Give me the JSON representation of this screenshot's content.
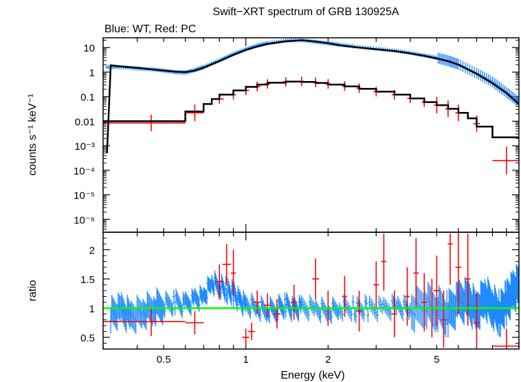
{
  "title": "Swift−XRT spectrum of GRB 130925A",
  "subtitle": "Blue: WT, Red: PC",
  "colors": {
    "wt": "#1e88ff",
    "pc": "#ff0000",
    "model": "#000000",
    "unity": "#00ff00",
    "axis": "#000000"
  },
  "chart_data": [
    {
      "type": "scatter",
      "panel": "spectrum",
      "title": "Swift−XRT spectrum of GRB 130925A",
      "subtitle": "Blue: WT, Red: PC",
      "xlabel": "Energy (keV)",
      "ylabel": "counts s⁻¹ keV⁻¹",
      "xscale": "log",
      "yscale": "log",
      "xlim": [
        0.3,
        10
      ],
      "ylim": [
        3e-07,
        25
      ],
      "y_ticks": [
        {
          "value": 10,
          "label": "10"
        },
        {
          "value": 1,
          "label": "1"
        },
        {
          "value": 0.1,
          "label": "0.1"
        },
        {
          "value": 0.01,
          "label": "0.01"
        },
        {
          "value": 0.001,
          "label": "10⁻³"
        },
        {
          "value": 0.0001,
          "label": "10⁻⁴"
        },
        {
          "value": 1e-05,
          "label": "10⁻⁵"
        },
        {
          "value": 1e-06,
          "label": "10⁻⁶"
        }
      ],
      "series": [
        {
          "name": "Blue: WT",
          "x": [
            0.31,
            0.35,
            0.4,
            0.45,
            0.5,
            0.55,
            0.6,
            0.65,
            0.7,
            0.8,
            0.9,
            1.0,
            1.1,
            1.2,
            1.4,
            1.6,
            1.8,
            2.0,
            2.2,
            2.5,
            3.0,
            3.5,
            4.0,
            4.5,
            5.0,
            5.5,
            6.0,
            7.0,
            8.0,
            9.0,
            10.0
          ],
          "y": [
            1.6,
            1.6,
            1.4,
            1.3,
            1.15,
            1.0,
            0.95,
            1.2,
            1.6,
            3.0,
            5.5,
            8.5,
            12,
            15,
            19,
            20,
            17,
            15,
            13,
            11,
            9,
            7.5,
            6,
            4.8,
            3.8,
            2.9,
            2.1,
            0.9,
            0.4,
            0.15,
            0.06
          ]
        },
        {
          "name": "Red: PC",
          "x": [
            0.45,
            0.65,
            0.8,
            0.9,
            1.0,
            1.1,
            1.2,
            1.4,
            1.6,
            1.8,
            2.0,
            2.3,
            2.6,
            3.0,
            3.5,
            4.0,
            4.5,
            5.0,
            5.5,
            6.0,
            7.0,
            9.0
          ],
          "y": [
            0.0085,
            0.022,
            0.08,
            0.12,
            0.18,
            0.26,
            0.33,
            0.4,
            0.42,
            0.38,
            0.33,
            0.27,
            0.22,
            0.16,
            0.12,
            0.085,
            0.06,
            0.045,
            0.032,
            0.022,
            0.008,
            0.00025
          ],
          "xerr": [
            [
              0.15,
              0.15
            ],
            [
              0.05,
              0.05
            ],
            [
              0.03,
              0.03
            ],
            [
              0.02,
              0.02
            ],
            [
              0.03,
              0.03
            ],
            [
              0.03,
              0.03
            ],
            [
              0.03,
              0.03
            ],
            [
              0.04,
              0.04
            ],
            [
              0.04,
              0.04
            ],
            [
              0.05,
              0.05
            ],
            [
              0.05,
              0.05
            ],
            [
              0.05,
              0.05
            ],
            [
              0.06,
              0.06
            ],
            [
              0.07,
              0.07
            ],
            [
              0.08,
              0.08
            ],
            [
              0.1,
              0.1
            ],
            [
              0.1,
              0.1
            ],
            [
              0.12,
              0.12
            ],
            [
              0.12,
              0.12
            ],
            [
              0.15,
              0.15
            ],
            [
              0.2,
              0.2
            ],
            [
              1.0,
              1.0
            ]
          ]
        }
      ],
      "model": {
        "wt_curve": {
          "x": [
            0.31,
            0.32,
            0.35,
            0.4,
            0.45,
            0.5,
            0.55,
            0.6,
            0.65,
            0.7,
            0.8,
            0.9,
            1.0,
            1.1,
            1.2,
            1.4,
            1.6,
            1.8,
            2.0,
            2.2,
            2.5,
            3.0,
            3.5,
            4.0,
            4.5,
            5.0,
            5.5,
            6.0,
            7.0,
            8.0,
            9.0,
            10.0
          ],
          "y": [
            0.0005,
            1.9,
            1.7,
            1.5,
            1.3,
            1.15,
            1.05,
            1.0,
            1.15,
            1.5,
            2.8,
            5.0,
            8.0,
            11,
            14,
            18,
            20,
            17.5,
            15,
            12.5,
            10.5,
            8.5,
            7.2,
            5.8,
            4.6,
            3.6,
            2.8,
            2.0,
            0.85,
            0.35,
            0.14,
            0.05
          ]
        },
        "pc_steps": {
          "edges": [
            0.3,
            0.6,
            0.7,
            0.75,
            0.8,
            0.9,
            1.0,
            1.1,
            1.2,
            1.4,
            1.6,
            1.8,
            2.0,
            2.3,
            2.6,
            3.0,
            3.5,
            4.0,
            4.5,
            5.0,
            5.5,
            6.0,
            6.5,
            7.0,
            8.0,
            10.0
          ],
          "y": [
            0.01,
            0.025,
            0.05,
            0.08,
            0.12,
            0.18,
            0.25,
            0.31,
            0.37,
            0.41,
            0.4,
            0.36,
            0.31,
            0.26,
            0.21,
            0.16,
            0.12,
            0.085,
            0.06,
            0.045,
            0.032,
            0.022,
            0.013,
            0.006,
            0.0022
          ]
        }
      }
    },
    {
      "type": "scatter",
      "panel": "ratio",
      "xlabel": "Energy (keV)",
      "ylabel": "ratio",
      "xscale": "log",
      "xlim": [
        0.3,
        10
      ],
      "ylim": [
        0.3,
        2.3
      ],
      "x_ticks": [
        {
          "value": 0.5,
          "label": "0.5"
        },
        {
          "value": 1,
          "label": "1"
        },
        {
          "value": 2,
          "label": "2"
        },
        {
          "value": 5,
          "label": "5"
        }
      ],
      "y_ticks": [
        {
          "value": 0.5,
          "label": "0.5"
        },
        {
          "value": 1,
          "label": "1"
        },
        {
          "value": 1.5,
          "label": "1.5"
        },
        {
          "value": 2,
          "label": "2"
        }
      ],
      "reference_line": 1,
      "series": [
        {
          "name": "Blue: WT",
          "x": [
            0.32,
            0.35,
            0.38,
            0.42,
            0.46,
            0.5,
            0.55,
            0.6,
            0.65,
            0.7,
            0.75,
            0.8,
            0.85,
            0.9,
            0.95,
            1.0,
            1.1,
            1.2,
            1.3,
            1.4,
            1.5,
            1.6,
            1.8,
            2.0,
            2.2,
            2.5,
            2.8,
            3.2,
            3.6,
            4.0,
            4.5,
            5.0,
            5.5,
            6.0,
            6.5,
            7.0,
            7.5,
            8.0,
            8.5,
            9.0,
            9.5,
            10.0
          ],
          "y": [
            0.9,
            0.95,
            0.85,
            0.92,
            1.0,
            1.05,
            1.1,
            1.05,
            1.15,
            1.2,
            1.45,
            1.4,
            1.3,
            1.25,
            1.1,
            1.05,
            1.0,
            0.95,
            1.0,
            1.05,
            0.98,
            1.02,
            1.0,
            0.95,
            1.02,
            0.98,
            1.0,
            0.97,
            1.03,
            0.95,
            1.05,
            1.0,
            0.9,
            1.1,
            1.15,
            0.95,
            1.2,
            1.05,
            0.9,
            1.1,
            1.25,
            1.4
          ]
        },
        {
          "name": "Red: PC",
          "x": [
            0.45,
            0.65,
            0.8,
            0.85,
            0.9,
            1.0,
            1.05,
            1.1,
            1.2,
            1.3,
            1.5,
            1.8,
            2.0,
            2.3,
            2.6,
            3.0,
            3.2,
            3.5,
            3.9,
            4.2,
            4.5,
            4.8,
            5.0,
            5.3,
            5.6,
            6.0,
            6.5,
            7.0,
            9.0
          ],
          "y": [
            0.77,
            0.75,
            1.45,
            1.75,
            1.6,
            0.5,
            0.6,
            1.1,
            1.05,
            0.9,
            1.1,
            1.5,
            1.0,
            1.2,
            0.95,
            1.4,
            1.8,
            0.9,
            1.2,
            1.6,
            1.1,
            1.0,
            1.3,
            0.8,
            2.1,
            1.7,
            1.5,
            0.75,
            0.35
          ],
          "xerr": [
            [
              0.15,
              0.15
            ],
            [
              0.05,
              0.05
            ],
            [
              0.03,
              0.03
            ],
            [
              0.03,
              0.03
            ],
            [
              0.02,
              0.02
            ],
            [
              0.03,
              0.03
            ],
            [
              0.03,
              0.03
            ],
            [
              0.03,
              0.03
            ],
            [
              0.03,
              0.03
            ],
            [
              0.04,
              0.04
            ],
            [
              0.04,
              0.04
            ],
            [
              0.05,
              0.05
            ],
            [
              0.05,
              0.05
            ],
            [
              0.05,
              0.05
            ],
            [
              0.06,
              0.06
            ],
            [
              0.07,
              0.07
            ],
            [
              0.07,
              0.07
            ],
            [
              0.08,
              0.08
            ],
            [
              0.08,
              0.08
            ],
            [
              0.1,
              0.1
            ],
            [
              0.1,
              0.1
            ],
            [
              0.1,
              0.1
            ],
            [
              0.12,
              0.12
            ],
            [
              0.12,
              0.12
            ],
            [
              0.12,
              0.12
            ],
            [
              0.15,
              0.15
            ],
            [
              0.15,
              0.15
            ],
            [
              0.2,
              0.2
            ],
            [
              1.0,
              1.0
            ]
          ],
          "yerr": [
            0.25,
            0.2,
            0.3,
            0.35,
            0.4,
            0.15,
            0.15,
            0.2,
            0.2,
            0.25,
            0.3,
            0.35,
            0.3,
            0.35,
            0.35,
            0.4,
            0.5,
            0.4,
            0.5,
            0.6,
            0.5,
            0.5,
            0.6,
            0.5,
            0.7,
            0.8,
            0.8,
            0.5,
            0.3
          ]
        }
      ]
    }
  ]
}
